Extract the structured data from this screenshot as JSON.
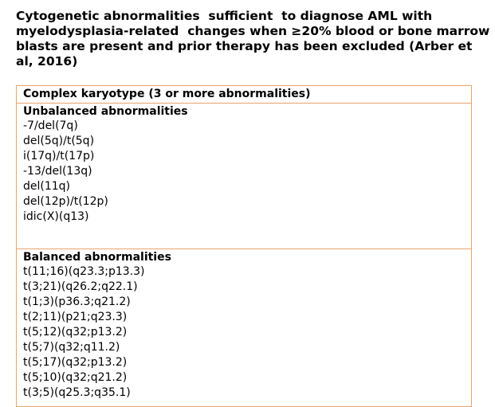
{
  "title": "Cytogenetic abnormalities  sufficient  to diagnose AML with myelodysplasia-related  changes when ≥20% blood or bone marrow blasts are present and prior therapy has been excluded (Arber et al, 2016)",
  "table": {
    "header": "Complex karyotype (3 or more abnormalities)",
    "unbalanced": {
      "title": "Unbalanced abnormalities",
      "items": [
        "-7/del(7q)",
        "del(5q)/t(5q)",
        "i(17q)/t(17p)",
        "-13/del(13q)",
        "del(11q)",
        "del(12p)/t(12p)",
        "idic(X)(q13)"
      ]
    },
    "balanced": {
      "title": "Balanced abnormalities",
      "items": [
        "t(11;16)(q23.3;p13.3)",
        "t(3;21)(q26.2;q22.1)",
        "t(1;3)(p36.3;q21.2)",
        "t(2;11)(p21;q23.3)",
        "t(5;12)(q32;p13.2)",
        "t(5;7)(q32;q11.2)",
        "t(5;17)(q32;p13.2)",
        "t(5;10)(q32;q21.2)",
        "t(3;5)(q25.3;q35.1)"
      ]
    }
  },
  "colors": {
    "border": "#e8a46b",
    "text": "#000000",
    "background": "#ffffff"
  }
}
